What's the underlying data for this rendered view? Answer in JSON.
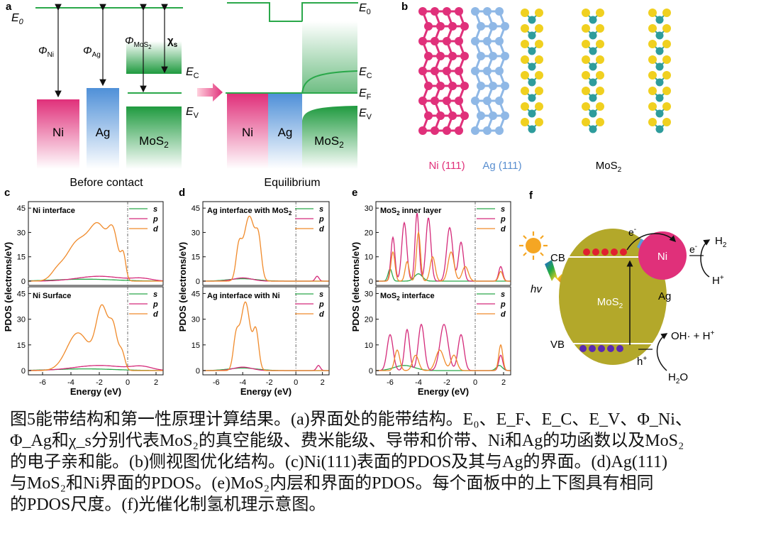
{
  "colors": {
    "ni": "#e0307a",
    "ag": "#6aa3dc",
    "mos2": "#2aa84a",
    "s_line": "#2aa84a",
    "p_line": "#d42a7a",
    "d_line": "#f08a2a",
    "olive": "#b3a82a",
    "sun": "#f5a623"
  },
  "panel_a": {
    "label": "a",
    "e0": "E",
    "e0_sub": "0",
    "phi": "Φ",
    "ni_sub": "Ni",
    "ag_sub": "Ag",
    "mos2_sub": "MoS",
    "mos2_sub2": "2",
    "chi": "χ",
    "chi_sub": "s",
    "ec": "E",
    "ec_sub": "C",
    "ev": "E",
    "ev_sub": "V",
    "ef": "E",
    "ef_sub": "F",
    "ni_box": "Ni",
    "ag_box": "Ag",
    "mos2_box": "MoS",
    "mos2_box_sub": "2",
    "before": "Before contact",
    "after": "Equilibrium"
  },
  "panel_b": {
    "label": "b",
    "ni": "Ni (111)",
    "ag": "Ag (111)",
    "mos2": "MoS",
    "mos2_sub": "2"
  },
  "pdos": {
    "ylabel": "PDOS (electrons/eV)",
    "xlabel": "Energy (eV)",
    "legend": [
      "s",
      "p",
      "d"
    ],
    "panels": [
      {
        "label": "c",
        "top_title": "Ni interface",
        "bottom_title": "Ni Surface",
        "yticks_top": [
          "0",
          "15",
          "30",
          "45"
        ],
        "yticks_bottom": [
          "0",
          "15",
          "30",
          "45"
        ],
        "xticks": [
          "-6",
          "-4",
          "-2",
          "0",
          "2"
        ]
      },
      {
        "label": "d",
        "top_title": "Ag interface with MoS",
        "top_title_sub": "2",
        "bottom_title": "Ag interface with Ni",
        "yticks_top": [
          "0",
          "15",
          "30",
          "45"
        ],
        "yticks_bottom": [
          "0",
          "15",
          "30",
          "45"
        ],
        "xticks": [
          "-6",
          "-4",
          "-2",
          "0",
          "2"
        ]
      },
      {
        "label": "e",
        "top_title": "MoS",
        "top_title_sub": "2",
        "top_title_rest": " inner layer",
        "bottom_title": "MoS",
        "bottom_title_sub": "2",
        "bottom_title_rest": " interface",
        "yticks_top": [
          "0",
          "10",
          "20",
          "30"
        ],
        "yticks_bottom": [
          "0",
          "10",
          "20",
          "30"
        ],
        "xticks": [
          "-6",
          "-4",
          "-2",
          "0",
          "2"
        ]
      }
    ]
  },
  "panel_f": {
    "label": "f",
    "cb": "CB",
    "vb": "VB",
    "hv": "hv",
    "mos2": "MoS",
    "mos2_sub": "2",
    "ni": "Ni",
    "ag": "Ag",
    "e_minus": "e",
    "e_sup": "-",
    "h2": "H",
    "h2_sub": "2",
    "hplus": "H",
    "hplus_sup": "+",
    "oh": "OH· + H",
    "oh_sup": "+",
    "h_plus2": "h",
    "h_plus2_sup": "+",
    "h2o": "H",
    "h2o_sub": "2",
    "h2o_rest": "O"
  },
  "caption": [
    "图5能带结构和第一性原理计算结果。(a)界面处的能带结构。E₀、E_F、E_C、E_V、Φ_Ni、",
    "Φ_Ag和χ_s分别代表MoS₂的真空能级、费米能级、导带和价带、Ni和Ag的功函数以及MoS₂",
    "的电子亲和能。(b)侧视图优化结构。(c)Ni(111)表面的PDOS及其与Ag的界面。(d)Ag(111)",
    "与MoS₂和Ni界面的PDOS。(e)MoS₂内层和界面的PDOS。每个面板中的上下图具有相同",
    "的PDOS尺度。(f)光催化制氢机理示意图。"
  ]
}
